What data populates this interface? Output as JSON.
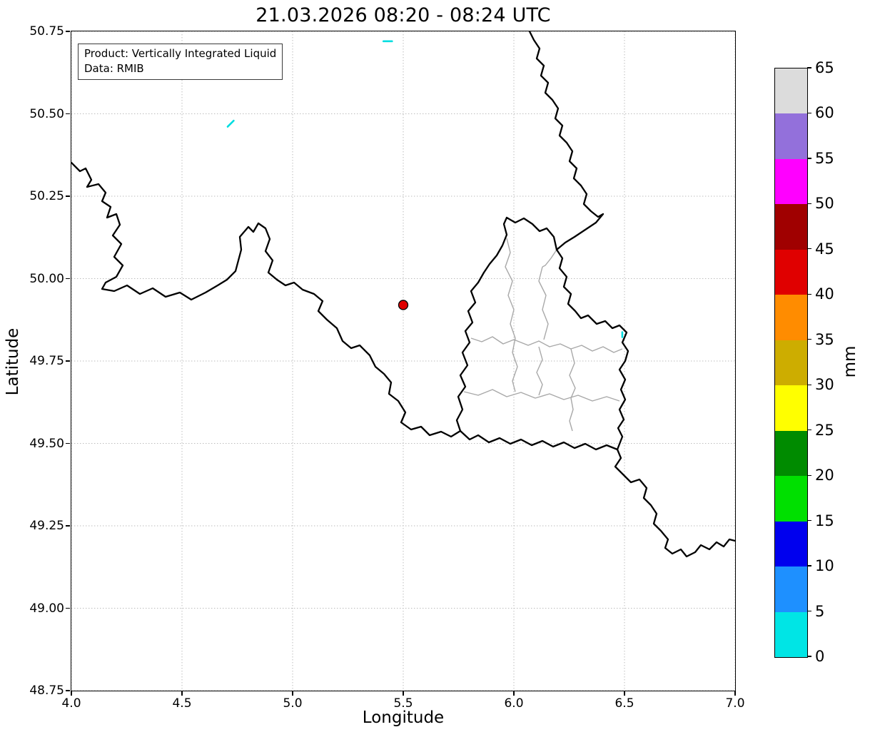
{
  "title": "21.03.2026 08:20 - 08:24 UTC",
  "annotation": {
    "line1": "Product: Vertically Integrated Liquid",
    "line2": "Data: RMIB"
  },
  "axes": {
    "xlabel": "Longitude",
    "ylabel": "Latitude",
    "xlim": [
      4.0,
      7.0
    ],
    "ylim": [
      48.75,
      50.75
    ],
    "x_tick_values": [
      4.0,
      4.5,
      5.0,
      5.5,
      6.0,
      6.5,
      7.0
    ],
    "x_tick_labels": [
      "4.0",
      "4.5",
      "5.0",
      "5.5",
      "6.0",
      "6.5",
      "7.0"
    ],
    "y_tick_values": [
      48.75,
      49.0,
      49.25,
      49.5,
      49.75,
      50.0,
      50.25,
      50.5,
      50.75
    ],
    "y_tick_labels": [
      "48.75",
      "49.00",
      "49.25",
      "49.50",
      "49.75",
      "50.00",
      "50.25",
      "50.50",
      "50.75"
    ],
    "grid_style": "dotted-gray"
  },
  "colorbar": {
    "label": "mm",
    "range": [
      0,
      65
    ],
    "tick_values": [
      0,
      5,
      10,
      15,
      20,
      25,
      30,
      35,
      40,
      45,
      50,
      55,
      60,
      65
    ],
    "colors_bottom_to_top": [
      "#00E5E5",
      "#1E90FF",
      "#0000EE",
      "#00E000",
      "#008B00",
      "#FFFF00",
      "#CDAD00",
      "#FF8C00",
      "#E00000",
      "#A00000",
      "#FF00FF",
      "#9370DB",
      "#DCDCDC"
    ]
  },
  "chart_data": {
    "type": "heatmap",
    "title": "21.03.2026 08:20 - 08:24 UTC",
    "product": "Vertically Integrated Liquid",
    "data_source": "RMIB",
    "xlabel": "Longitude",
    "ylabel": "Latitude",
    "xlim": [
      4.0,
      7.0
    ],
    "ylim": [
      48.75,
      50.75
    ],
    "unit": "mm",
    "colorbar_ticks": [
      0,
      5,
      10,
      15,
      20,
      25,
      30,
      35,
      40,
      45,
      50,
      55,
      60,
      65
    ],
    "colorbar_colors_bottom_to_top": [
      "#00E5E5",
      "#1E90FF",
      "#0000EE",
      "#00E000",
      "#008B00",
      "#FFFF00",
      "#CDAD00",
      "#FF8C00",
      "#E00000",
      "#A00000",
      "#FF00FF",
      "#9370DB",
      "#DCDCDC"
    ],
    "marker": {
      "lon": 5.5,
      "lat": 49.92,
      "color": "#E00000",
      "edge": "#000000"
    },
    "echoes": [
      {
        "lon": 5.43,
        "lat": 50.72,
        "angle": 0,
        "len": 12
      },
      {
        "lon": 4.72,
        "lat": 50.47,
        "angle": -45,
        "len": 12
      },
      {
        "lon": 6.49,
        "lat": 49.83,
        "angle": 90,
        "len": 7
      }
    ],
    "echo_color": "#00DDE0"
  }
}
